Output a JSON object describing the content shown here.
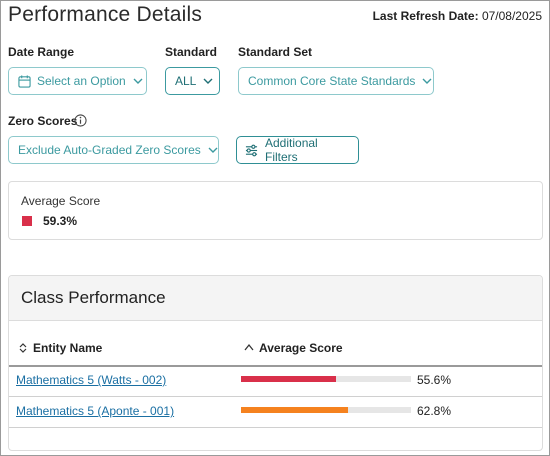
{
  "header": {
    "title": "Performance Details",
    "refresh_label": "Last Refresh Date:",
    "refresh_date": "07/08/2025"
  },
  "filters": {
    "date_range": {
      "label": "Date Range",
      "value": "Select an Option"
    },
    "standard": {
      "label": "Standard",
      "value": "ALL"
    },
    "standard_set": {
      "label": "Standard Set",
      "value": "Common Core State Standards"
    },
    "zero_scores": {
      "label": "Zero Scores",
      "value": "Exclude Auto-Graded Zero Scores"
    },
    "additional_filters_label": "Additional Filters"
  },
  "average_card": {
    "title": "Average Score",
    "value": "59.3%",
    "color": "#d9304a"
  },
  "class_performance": {
    "title": "Class Performance",
    "columns": {
      "entity": "Entity Name",
      "average": "Average Score"
    },
    "rows": [
      {
        "name": "Mathematics 5 (Watts - 002)",
        "score_text": "55.6%",
        "score": 0.556,
        "color": "#d9304a"
      },
      {
        "name": "Mathematics 5 (Aponte - 001)",
        "score_text": "62.8%",
        "score": 0.628,
        "color": "#f5821f"
      }
    ]
  },
  "colors": {
    "accent": "#3c9aa0",
    "link": "#1a6fa3"
  }
}
